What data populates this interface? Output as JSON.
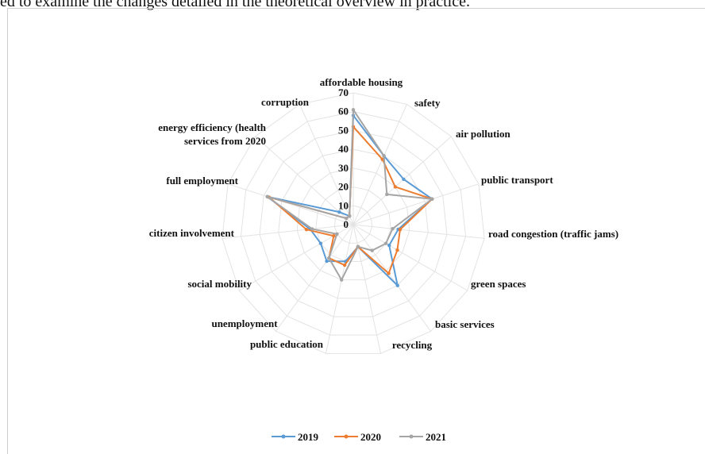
{
  "page": {
    "intro_text": "ed to examine the changes detailed in the theoretical overview in practice."
  },
  "chart_data": {
    "type": "radar",
    "categories": [
      "affordable housing",
      "safety",
      "air pollution",
      "public transport",
      "road congestion (traffic jams)",
      "green spaces",
      "basic services",
      "recycling",
      "public education",
      "unemployment",
      "social mobility",
      "citizen involvement",
      "full employment",
      "energy efficiency (health services from 2020",
      "corruption"
    ],
    "rlim": [
      0,
      70
    ],
    "ticks": [
      0,
      10,
      20,
      30,
      40,
      50,
      60,
      70
    ],
    "grid": true,
    "legend_position": "bottom",
    "series": [
      {
        "name": "2019",
        "color": "#5b9bd5",
        "values": [
          58,
          40,
          36,
          44,
          24,
          22,
          40,
          12,
          20,
          24,
          20,
          23,
          48,
          10,
          5
        ]
      },
      {
        "name": "2020",
        "color": "#ed7d31",
        "values": [
          52,
          38,
          30,
          44,
          25,
          27,
          32,
          12,
          22,
          22,
          12,
          25,
          47,
          5,
          5
        ]
      },
      {
        "name": "2021",
        "color": "#a5a5a5",
        "values": [
          61,
          40,
          24,
          44,
          21,
          20,
          17,
          12,
          30,
          22,
          10,
          22,
          48,
          5,
          5
        ]
      }
    ]
  }
}
